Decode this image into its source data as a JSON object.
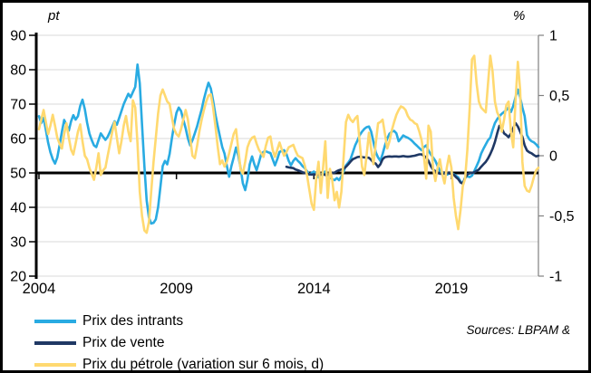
{
  "figure": {
    "pt_label": "pt",
    "percent_label": "%",
    "source_text": "Sources: LBPAM &"
  },
  "legend": [
    {
      "label": "Prix des intrants",
      "color": "#29ABE2"
    },
    {
      "label": "Prix de vente",
      "color": "#1F3864"
    },
    {
      "label": "Prix du pétrole (variation sur 6 mois, d)",
      "color": "#FFD970"
    }
  ],
  "chart_data": {
    "type": "line",
    "title": "",
    "grid": true,
    "colors": {
      "gridline": "#D9D9D9",
      "axis_black": "#000000",
      "right_axis_gray": "#808080",
      "zero_line": "#000000"
    },
    "x_axis": {
      "start_year": 2004,
      "months_per_point": 1,
      "ticks": [
        {
          "label": "2004",
          "month_index": 0
        },
        {
          "label": "2009",
          "month_index": 60
        },
        {
          "label": "2014",
          "month_index": 120
        },
        {
          "label": "2019",
          "month_index": 180
        }
      ]
    },
    "left_axis": {
      "unit": "pt",
      "range": [
        20,
        90
      ],
      "ticks": [
        90,
        80,
        70,
        60,
        50,
        40,
        30,
        20
      ],
      "baseline_value": 50
    },
    "right_axis": {
      "unit": "%",
      "range": [
        -1,
        1
      ],
      "ticks": [
        {
          "label": "1",
          "value": 1
        },
        {
          "label": "0,5",
          "value": 0.5
        },
        {
          "label": "0",
          "value": 0
        },
        {
          "label": "-0,5",
          "value": -0.5
        },
        {
          "label": "-1",
          "value": -1
        }
      ]
    },
    "series": [
      {
        "name": "Prix des intrants",
        "axis": "left",
        "color": "#29ABE2",
        "start_index": 0,
        "values": [
          66.5,
          64.5,
          66,
          62.5,
          58.8,
          56,
          54,
          52.7,
          54.5,
          58,
          62,
          65.4,
          64,
          62.3,
          65,
          66.8,
          65.5,
          66.5,
          69.5,
          71.3,
          68.5,
          64.6,
          61.5,
          59.6,
          58,
          57.5,
          59.5,
          61.5,
          60.5,
          59.6,
          60.5,
          62,
          63.5,
          65,
          64,
          66,
          68,
          70,
          71.5,
          73,
          72,
          73.5,
          75,
          81.5,
          76,
          64,
          52,
          42,
          37,
          35.3,
          35.5,
          36.5,
          40,
          46,
          52,
          53.5,
          52.5,
          55.5,
          60,
          64,
          67.5,
          69,
          68,
          65.5,
          63,
          60,
          58,
          59.5,
          61.5,
          63.5,
          66,
          68.5,
          71.5,
          74,
          76.2,
          74.5,
          71,
          67,
          63.7,
          60.5,
          57.5,
          55.6,
          52,
          48.9,
          52,
          54.5,
          57.4,
          55,
          51.5,
          47,
          45,
          48,
          52.5,
          54.8,
          52.5,
          50.8,
          53,
          55.5,
          56.1,
          56.3,
          56,
          55.8,
          54,
          52.2,
          54,
          56.1,
          56.4,
          56.6,
          55.5,
          53.5,
          52.2,
          53.5,
          54.3,
          53.5,
          52.9,
          52,
          51.4,
          50.5,
          49.5,
          50,
          50.4,
          49.5,
          48.7,
          49.5,
          50,
          50.4,
          49.5,
          48.7,
          48.2,
          47.9,
          48.5,
          47.9,
          49,
          50.5,
          52.2,
          53,
          54,
          56,
          58,
          59.4,
          61,
          62,
          62.8,
          63.3,
          63.5,
          62,
          59,
          56,
          54.5,
          53.5,
          55.5,
          58,
          60,
          61.4,
          62,
          62.2,
          61.5,
          59.2,
          60,
          60.9,
          60.5,
          60.2,
          59.8,
          59.2,
          58.5,
          57.9,
          57.2,
          56.6,
          57.5,
          58,
          56.5,
          55.4,
          54.5,
          53.5,
          52,
          50.6,
          50,
          49.8,
          49.5,
          49.8,
          50,
          49.6,
          49.2,
          48.7,
          47.5,
          47,
          48.6,
          49,
          48.8,
          49.2,
          50.5,
          52,
          53.5,
          55.6,
          57,
          58.3,
          59.5,
          60.3,
          62.5,
          64.5,
          65.6,
          66.5,
          67.2,
          67.7,
          68.3,
          69,
          67.7,
          69.5,
          72,
          74.2,
          72,
          69,
          66.5,
          61,
          59.8,
          59.2,
          58.9,
          58.3,
          57.5
        ]
      },
      {
        "name": "Prix de vente",
        "axis": "left",
        "color": "#1F3864",
        "start_index": 108,
        "values": [
          51.8,
          51.6,
          51.5,
          51.4,
          51,
          50.8,
          50.5,
          50.2,
          50,
          49.8,
          49.6,
          49.5,
          49.6,
          49.5,
          49.4,
          49.5,
          49.6,
          49.4,
          49.5,
          49.7,
          50,
          50.1,
          50.5,
          50.8,
          51,
          51.2,
          51.8,
          52.5,
          53.3,
          54,
          54.3,
          54.6,
          54.7,
          54.6,
          54.5,
          54.5,
          54.4,
          53.8,
          53,
          52.7,
          51.7,
          52.5,
          54,
          54.6,
          54.7,
          54.8,
          54.7,
          54.8,
          54.8,
          54.7,
          54.8,
          54.9,
          54.8,
          54.7,
          54.8,
          54.9,
          55,
          55.2,
          55.4,
          55.4,
          55,
          54.5,
          53.5,
          52,
          51,
          50.5,
          50,
          49.8,
          49.7,
          49.8,
          50,
          49.9,
          49.8,
          49.5,
          48.8,
          48.2,
          47.2,
          46.9,
          48.5,
          49.6,
          49.9,
          50,
          50.2,
          50.6,
          51,
          51.8,
          52.5,
          53.2,
          54.2,
          55.5,
          57,
          59,
          61.5,
          63.7,
          63,
          61.5,
          61,
          60.4,
          61.5,
          63,
          64.5,
          63.5,
          62,
          60.5,
          58,
          56.5,
          56,
          55.7,
          55.2,
          54.8,
          55
        ]
      },
      {
        "name": "Prix du pétrole (variation sur 6 mois, d)",
        "axis": "right",
        "color": "#FFD970",
        "start_index": 0,
        "values": [
          0.22,
          0.3,
          0.38,
          0.28,
          0.18,
          0.25,
          0.34,
          0.25,
          0.15,
          0.1,
          0.06,
          0.18,
          0.27,
          0.15,
          0.05,
          0.01,
          0.1,
          0.2,
          0.26,
          0.12,
          0,
          -0.03,
          -0.1,
          -0.15,
          -0.2,
          -0.1,
          0.02,
          -0.16,
          -0.12,
          -0.1,
          0,
          0.1,
          0.2,
          0.28,
          0.15,
          0.02,
          0.12,
          0.25,
          0.33,
          0.2,
          0.12,
          0.46,
          0.4,
          0.1,
          -0.3,
          -0.5,
          -0.62,
          -0.64,
          -0.55,
          -0.3,
          -0.05,
          0.15,
          0.35,
          0.5,
          0.55,
          0.5,
          0.45,
          0.43,
          0.32,
          0.22,
          0.18,
          0.16,
          0.22,
          0.3,
          0.38,
          0.3,
          0.15,
          0,
          -0.02,
          0.08,
          0.2,
          0.3,
          0.38,
          0.45,
          0.5,
          0.51,
          0.4,
          0.25,
          0.08,
          -0.07,
          -0.04,
          -0.09,
          -0.05,
          0.02,
          0.1,
          0.18,
          0.22,
          0.05,
          -0.11,
          -0.15,
          -0.05,
          0.07,
          0.12,
          0.15,
          0.16,
          0.1,
          0.05,
          0.02,
          -0.01,
          0.08,
          0.15,
          0.16,
          0.05,
          -0.01,
          0.05,
          0.11,
          0.05,
          0,
          0.03,
          0.07,
          0.08,
          0.09,
          0.04,
          0,
          -0.01,
          -0.02,
          -0.08,
          -0.16,
          -0.28,
          -0.4,
          -0.45,
          -0.2,
          -0.05,
          -0.31,
          -0.1,
          0.12,
          -0.35,
          -0.11,
          -0.2,
          -0.37,
          -0.3,
          -0.43,
          -0.3,
          0,
          0.28,
          0.34,
          0.3,
          0.28,
          0.31,
          0.33,
          0.1,
          -0.09,
          -0.16,
          0,
          0.19,
          0.05,
          -0.07,
          0.1,
          0.27,
          0.28,
          0.3,
          0.18,
          0.06,
          0.12,
          0.21,
          0.28,
          0.34,
          0.38,
          0.41,
          0.4,
          0.38,
          0.33,
          0.3,
          0.29,
          0.27,
          0.26,
          0.2,
          0.13,
          0,
          -0.19,
          0.25,
          0.2,
          -0.1,
          -0.21,
          -0.1,
          -0.03,
          -0.15,
          -0.23,
          -0.1,
          0,
          -0.1,
          -0.35,
          -0.5,
          -0.61,
          -0.45,
          -0.25,
          -0.19,
          0.05,
          0.4,
          0.8,
          0.83,
          0.6,
          0.45,
          0.4,
          0.38,
          0.36,
          0.6,
          0.83,
          0.7,
          0.45,
          0.36,
          0.32,
          0.2,
          0.3,
          0.42,
          0.45,
          0.2,
          0.07,
          0.45,
          0.78,
          0.55,
          -0.05,
          -0.25,
          -0.29,
          -0.3,
          -0.25,
          -0.18,
          -0.12,
          -0.1
        ]
      }
    ]
  }
}
